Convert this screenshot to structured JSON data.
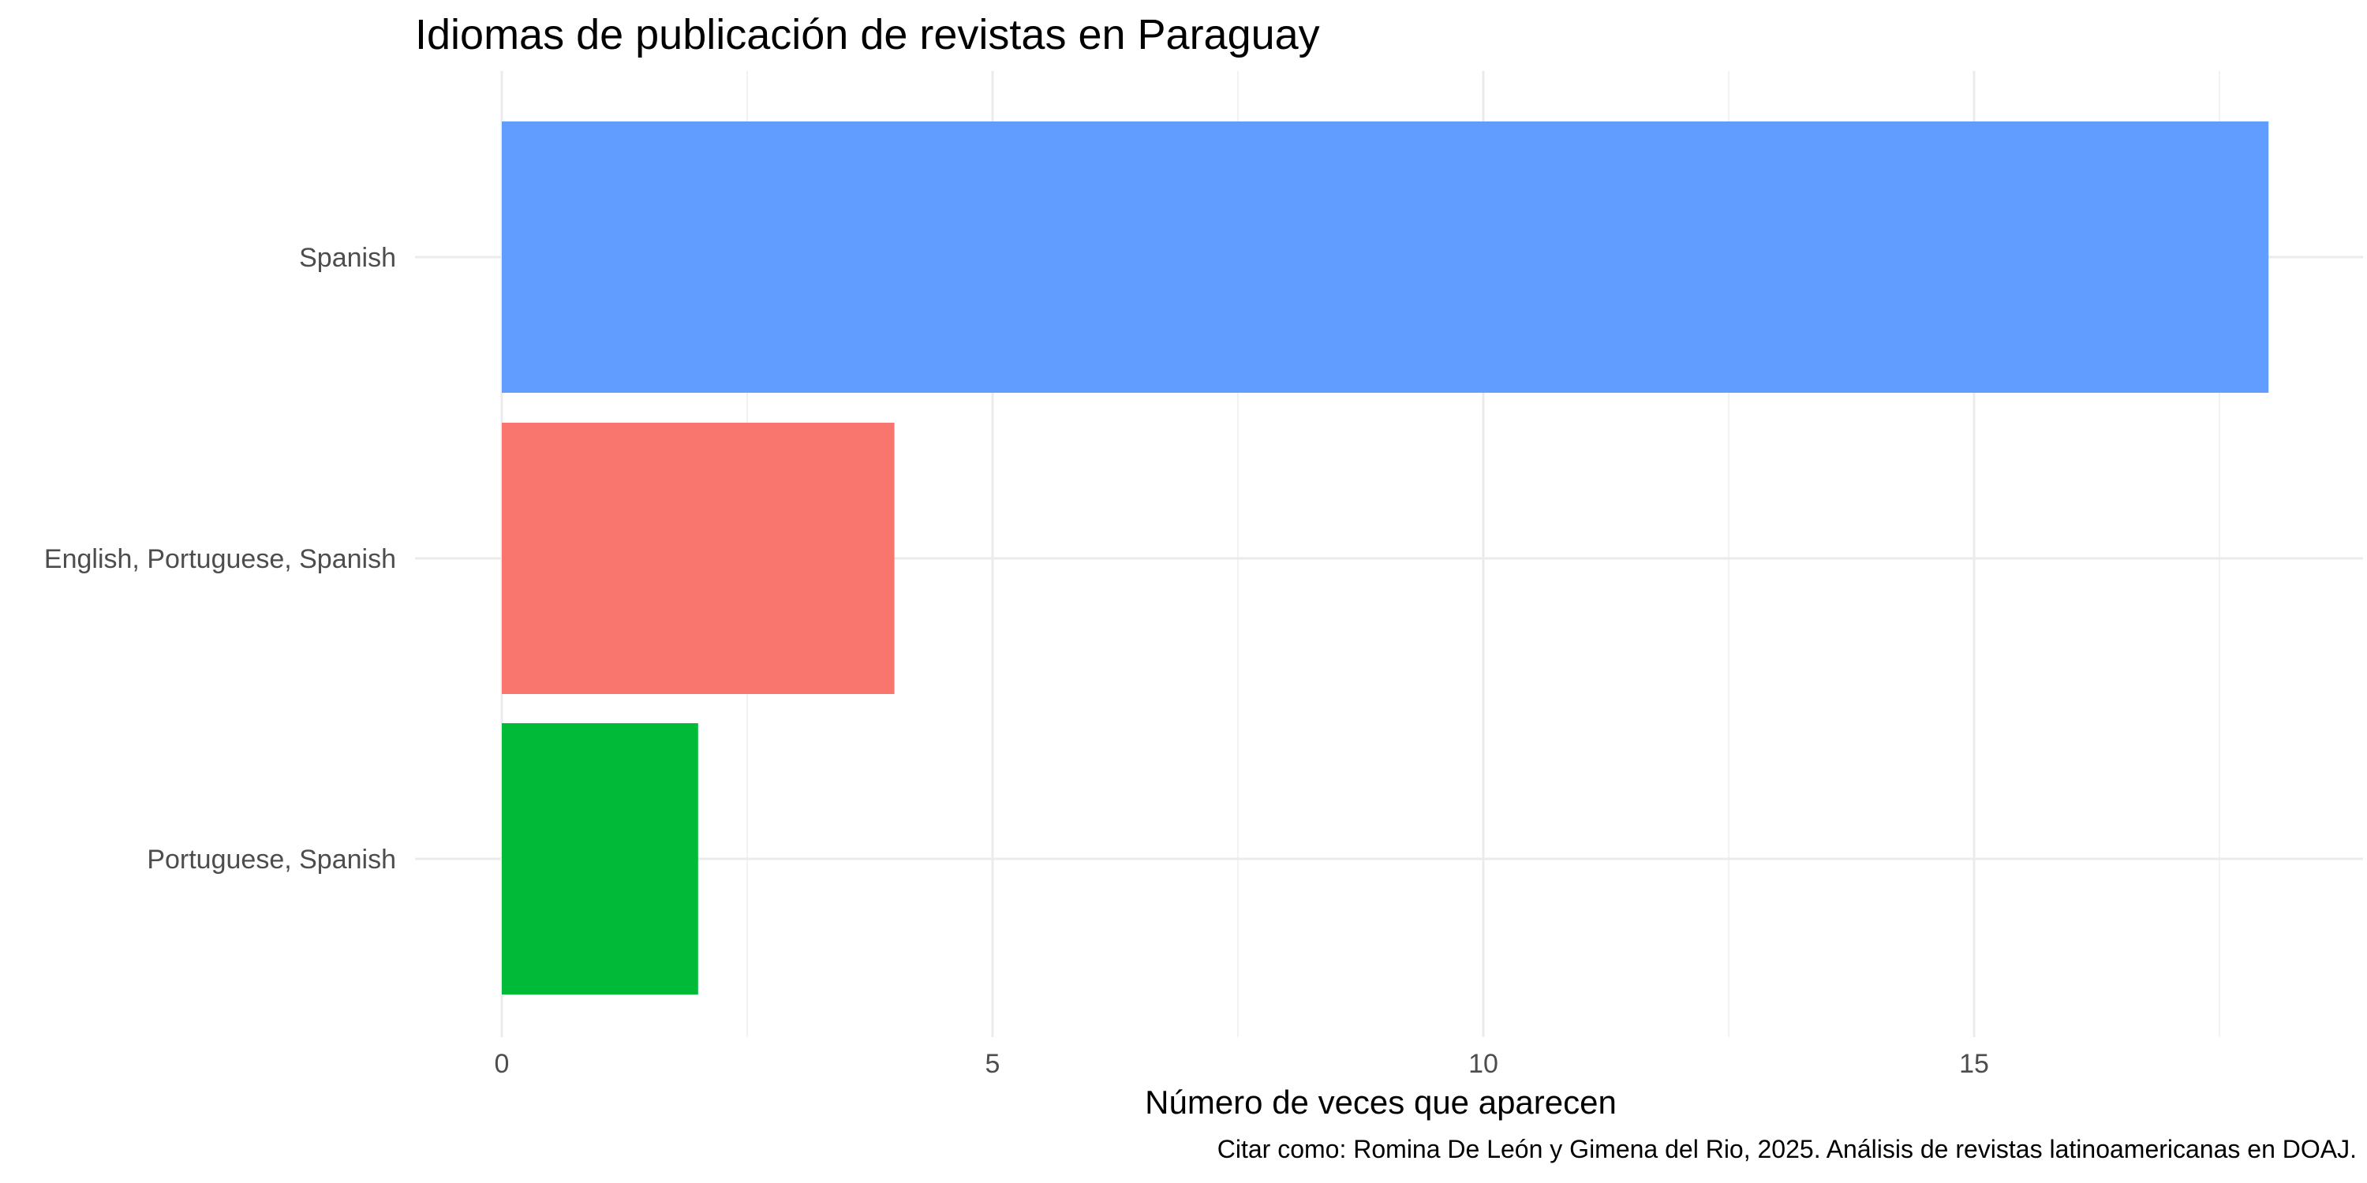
{
  "chart_data": {
    "type": "bar",
    "orientation": "horizontal",
    "title": "Idiomas de publicación de revistas en Paraguay",
    "xlabel": "Número de veces que aparecen",
    "ylabel": "",
    "caption": "Citar como: Romina De León y Gimena del Rio, 2025. Análisis de revistas latinoamericanas en DOAJ.",
    "categories": [
      "Spanish",
      "English, Portuguese, Spanish",
      "Portuguese, Spanish"
    ],
    "values": [
      18,
      4,
      2
    ],
    "colors": [
      "#619CFF",
      "#F8766D",
      "#00BA38"
    ],
    "xlim": [
      0,
      18.9
    ],
    "xticks": [
      0,
      5,
      10,
      15
    ],
    "xtick_labels": [
      "0",
      "5",
      "10",
      "15"
    ],
    "grid": true,
    "legend": "none"
  }
}
